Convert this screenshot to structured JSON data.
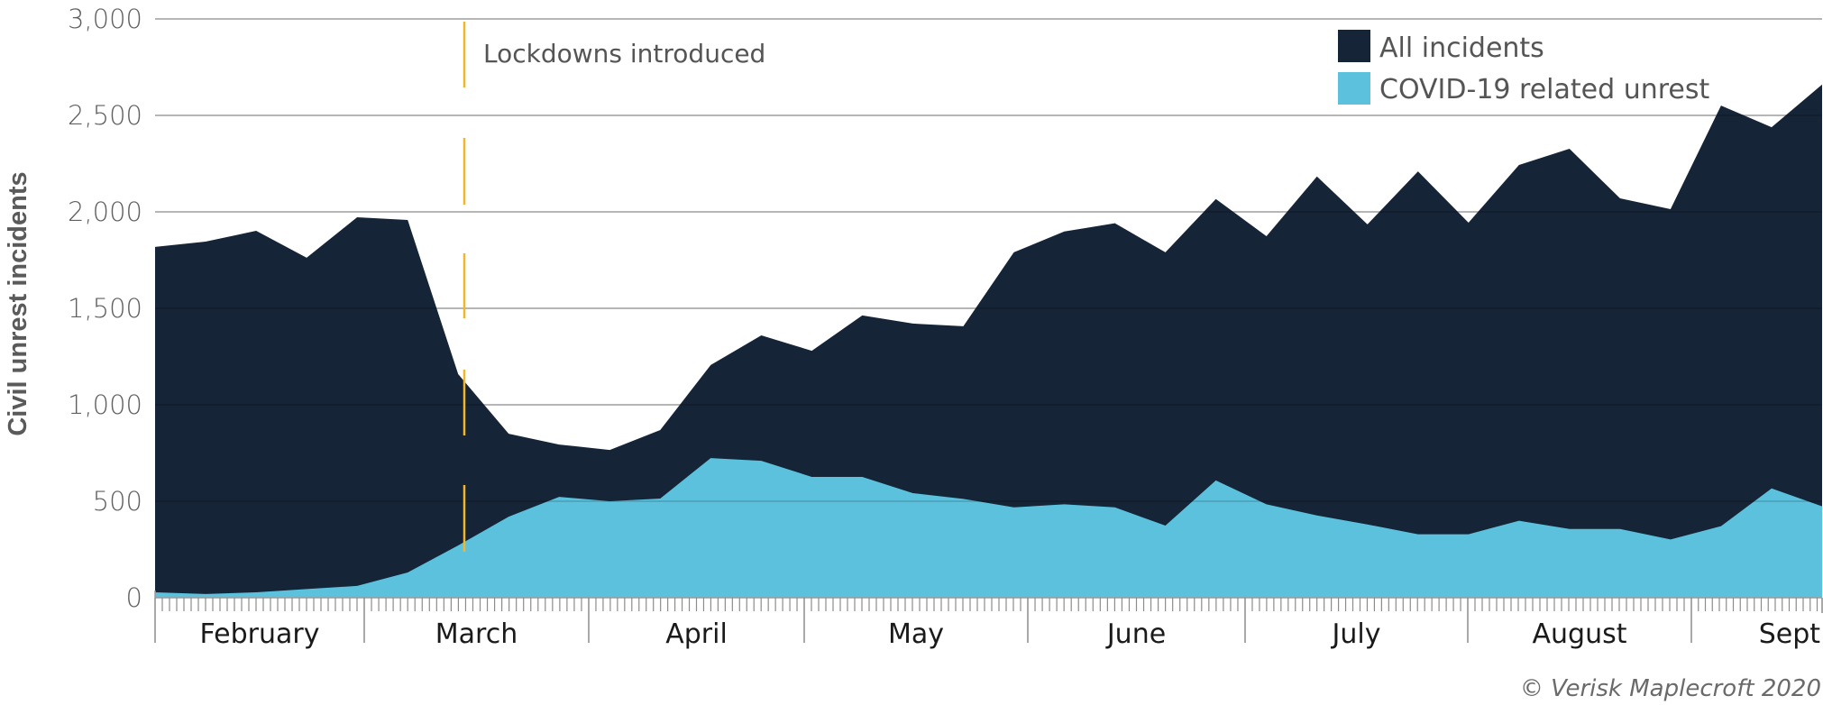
{
  "chart_data": {
    "type": "area",
    "title": "",
    "xlabel": "",
    "ylabel": "Civil unrest incidents",
    "ylim": [
      0,
      3000
    ],
    "yticks": [
      0,
      500,
      1000,
      1500,
      2000,
      2500,
      3000
    ],
    "ytick_labels": [
      "0",
      "500",
      "1,000",
      "1,500",
      "2,000",
      "2,500",
      "3,000"
    ],
    "grid": true,
    "x_granularity": "weekly",
    "months": [
      "February",
      "March",
      "April",
      "May",
      "June",
      "July",
      "August",
      "Sept"
    ],
    "series": [
      {
        "name": "All incidents",
        "color": "#152436",
        "values": [
          1818,
          1846,
          1902,
          1762,
          1972,
          1958,
          1159,
          850,
          794,
          766,
          869,
          1206,
          1360,
          1280,
          1463,
          1421,
          1407,
          1790,
          1898,
          1941,
          1790,
          2067,
          1874,
          2183,
          1935,
          2210,
          1944,
          2243,
          2327,
          2070,
          2014,
          2551,
          2439,
          2660
        ]
      },
      {
        "name": "COVID-19 related unrest",
        "color": "#5bc1dd",
        "values": [
          28,
          19,
          28,
          45,
          61,
          131,
          271,
          420,
          523,
          500,
          514,
          724,
          710,
          626,
          626,
          542,
          512,
          468,
          484,
          468,
          374,
          608,
          484,
          426,
          380,
          329,
          329,
          399,
          356,
          356,
          302,
          371,
          567,
          474
        ]
      }
    ],
    "annotations": [
      {
        "text": "Lockdowns introduced",
        "type": "vertical-dashed-line",
        "color": "#f2b62b",
        "position": "mid-March"
      }
    ],
    "legend": {
      "position": "top-right",
      "entries": [
        "All incidents",
        "COVID-19 related unrest"
      ]
    }
  },
  "legend": {
    "all_incidents": "All incidents",
    "covid_unrest": "COVID-19 related unrest"
  },
  "annotation": {
    "lockdowns": "Lockdowns introduced"
  },
  "axis": {
    "ylabel": "Civil unrest incidents"
  },
  "credit": "© Verisk Maplecroft 2020"
}
